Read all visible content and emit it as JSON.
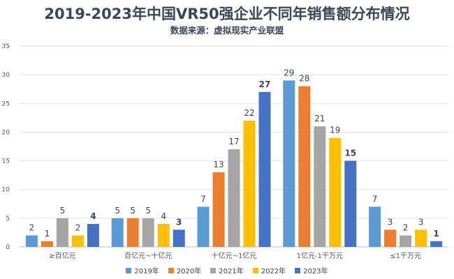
{
  "chart_data": {
    "type": "bar",
    "title": "2019-2023年中国VR50强企业不同年销售额分布情况",
    "subtitle": "数据来源：虚拟现实产业联盟",
    "xlabel": "",
    "ylabel": "",
    "ylim": [
      0,
      35
    ],
    "yticks": [
      0,
      5,
      10,
      15,
      20,
      25,
      30,
      35
    ],
    "grid": true,
    "legend_position": "bottom",
    "categories": [
      "≥百亿元",
      "百亿元~十亿元",
      "十亿元~1亿元",
      "1亿元-1千万元",
      "≤1千万元"
    ],
    "series": [
      {
        "name": "2019年",
        "color": "#5b9bd5",
        "values": [
          2,
          5,
          7,
          29,
          7
        ]
      },
      {
        "name": "2020年",
        "color": "#ed7d31",
        "values": [
          1,
          5,
          13,
          28,
          3
        ]
      },
      {
        "name": "2021年",
        "color": "#a5a5a5",
        "values": [
          5,
          5,
          17,
          21,
          2
        ]
      },
      {
        "name": "2022年",
        "color": "#ffc000",
        "values": [
          2,
          4,
          22,
          19,
          3
        ]
      },
      {
        "name": "2023年",
        "color": "#4472c4",
        "values": [
          4,
          3,
          27,
          15,
          1
        ]
      }
    ]
  }
}
